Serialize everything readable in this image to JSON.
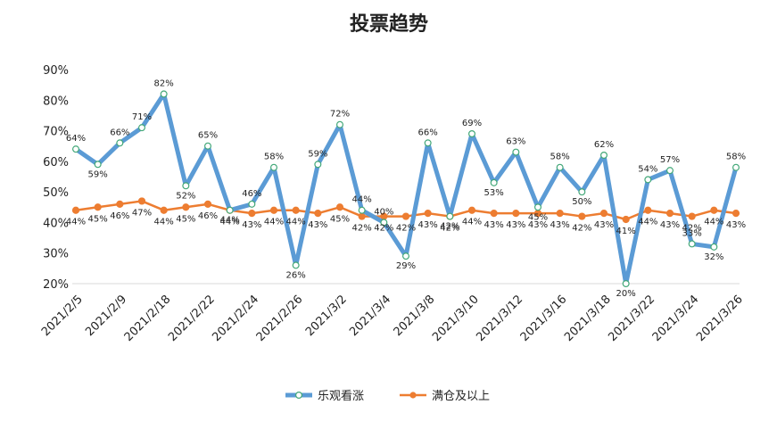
{
  "chart_data": {
    "type": "line",
    "title": "投票趋势",
    "xlabel": "",
    "ylabel": "",
    "ylim": [
      20,
      90
    ],
    "y_ticks": [
      "20%",
      "30%",
      "40%",
      "50%",
      "60%",
      "70%",
      "80%",
      "90%"
    ],
    "x_tick_labels": [
      "2021/2/5",
      "2021/2/9",
      "2021/2/18",
      "2021/2/22",
      "2021/2/24",
      "2021/2/26",
      "2021/3/2",
      "2021/3/4",
      "2021/3/8",
      "2021/3/10",
      "2021/3/12",
      "2021/3/16",
      "2021/3/18",
      "2021/3/22",
      "2021/3/24",
      "2021/3/26"
    ],
    "legend_position": "bottom",
    "series": [
      {
        "name": "乐观看涨",
        "color": "#5b9bd5",
        "values": [
          64,
          59,
          66,
          71,
          82,
          52,
          65,
          44,
          46,
          58,
          26,
          59,
          72,
          44,
          40,
          29,
          66,
          42,
          69,
          53,
          63,
          45,
          58,
          50,
          62,
          20,
          54,
          57,
          33,
          32,
          58
        ],
        "labels": [
          "64%",
          "59%",
          "66%",
          "71%",
          "82%",
          "52%",
          "65%",
          "44%",
          "46%",
          "58%",
          "26%",
          "59%",
          "72%",
          "44%",
          "40%",
          "29%",
          "66%",
          "42%",
          "69%",
          "53%",
          "63%",
          "45%",
          "58%",
          "50%",
          "62%",
          "20%",
          "54%",
          "57%",
          "33%",
          "32%",
          "58%"
        ]
      },
      {
        "name": "满仓及以上",
        "color": "#ed7d31",
        "values": [
          44,
          45,
          46,
          47,
          44,
          45,
          46,
          44,
          43,
          44,
          44,
          43,
          45,
          42,
          42,
          42,
          43,
          42,
          44,
          43,
          43,
          43,
          43,
          42,
          43,
          41,
          44,
          43,
          42,
          44,
          43
        ],
        "labels": [
          "44%",
          "45%",
          "46%",
          "47%",
          "44%",
          "45%",
          "46%",
          "44%",
          "43%",
          "44%",
          "44%",
          "43%",
          "45%",
          "42%",
          "42%",
          "42%",
          "43%",
          "42%",
          "44%",
          "43%",
          "43%",
          "43%",
          "43%",
          "42%",
          "43%",
          "41%",
          "44%",
          "43%",
          "42%",
          "44%",
          "43%"
        ]
      }
    ]
  }
}
